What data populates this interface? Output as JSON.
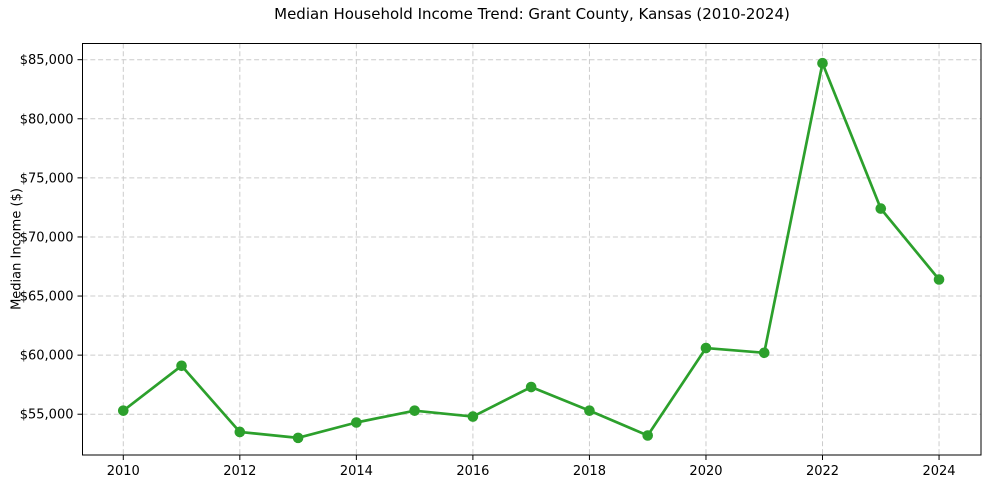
{
  "chart_data": {
    "type": "line",
    "title": "Median Household Income Trend: Grant County, Kansas (2010-2024)",
    "ylabel": "Median Income ($)",
    "xlabel": "",
    "series": [
      {
        "name": "Median household income",
        "x": [
          2010,
          2011,
          2012,
          2013,
          2014,
          2015,
          2016,
          2017,
          2018,
          2019,
          2020,
          2021,
          2022,
          2023,
          2024
        ],
        "values": [
          55300,
          59100,
          53500,
          53000,
          54300,
          55300,
          54800,
          57300,
          55300,
          53200,
          60600,
          60200,
          84700,
          72400,
          66400
        ]
      }
    ],
    "x_ticks": [
      2010,
      2012,
      2014,
      2016,
      2018,
      2020,
      2022,
      2024
    ],
    "x_tick_labels": [
      "2010",
      "2012",
      "2014",
      "2016",
      "2018",
      "2020",
      "2022",
      "2024"
    ],
    "y_ticks": [
      55000,
      60000,
      65000,
      70000,
      75000,
      80000,
      85000
    ],
    "y_tick_labels": [
      "$55,000",
      "$60,000",
      "$65,000",
      "$70,000",
      "$75,000",
      "$80,000",
      "$85,000"
    ],
    "xlim": [
      2009.3,
      2024.72
    ],
    "ylim": [
      51550,
      86370
    ],
    "grid": true,
    "grid_style": "dashed",
    "legend_position": "none",
    "marker": "circle",
    "colors": {
      "line": "#2ca02c",
      "marker": "#2ca02c",
      "grid": "#cccccc",
      "axis": "#000000",
      "text": "#000000",
      "background": "#ffffff"
    }
  }
}
